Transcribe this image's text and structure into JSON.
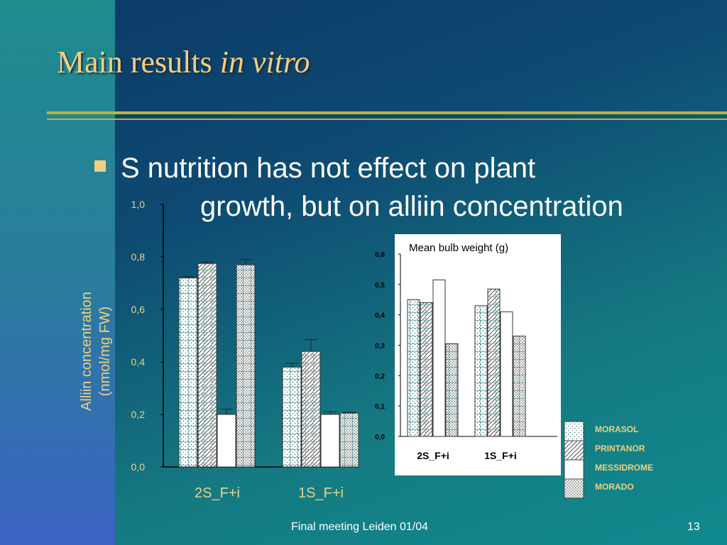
{
  "slide": {
    "title_main": "Main results",
    "title_italic": "in vitro",
    "bullet_line1": "S nutrition has not effect on plant",
    "bullet_line2": "growth, but on alliin concentration",
    "footer_text": "Final meeting Leiden 01/04",
    "page_number": "13"
  },
  "colors": {
    "title": "#f0d080",
    "axis_text_chart1": "#f0d080",
    "rule": "#b9b53a"
  },
  "chart_data": [
    {
      "type": "bar",
      "ylabel": "Alliin concentration\n(nmol/mg FW)",
      "ylabel_line1": "Alliin concentration",
      "ylabel_line2": "(nmol/mg FW)",
      "categories": [
        "2S_F+i",
        "1S_F+i"
      ],
      "ylim": [
        0,
        1.0
      ],
      "yticks": [
        "0,0",
        "0,2",
        "0,4",
        "0,6",
        "0,8",
        "1,0"
      ],
      "series": [
        {
          "name": "MORASOL",
          "values": [
            0.72,
            0.38
          ],
          "errors": [
            0.005,
            0.015
          ]
        },
        {
          "name": "PRINTANOR",
          "values": [
            0.775,
            0.44
          ],
          "errors": [
            0.005,
            0.045
          ]
        },
        {
          "name": "MESSIDROME",
          "values": [
            0.2,
            0.2
          ],
          "errors": [
            0.02,
            0.01
          ]
        },
        {
          "name": "MORADO",
          "values": [
            0.77,
            0.205
          ],
          "errors": [
            0.02,
            0.003
          ]
        }
      ]
    },
    {
      "type": "bar",
      "title": "Mean bulb weight (g)",
      "categories": [
        "2S_F+i",
        "1S_F+i"
      ],
      "ylim": [
        0,
        0.6
      ],
      "yticks": [
        "0,0",
        "0,1",
        "0,2",
        "0,3",
        "0,4",
        "0,5",
        "0,6"
      ],
      "series": [
        {
          "name": "MORASOL",
          "values": [
            0.45,
            0.43
          ]
        },
        {
          "name": "PRINTANOR",
          "values": [
            0.44,
            0.485
          ]
        },
        {
          "name": "MESSIDROME",
          "values": [
            0.515,
            0.41
          ]
        },
        {
          "name": "MORADO",
          "values": [
            0.305,
            0.33
          ]
        }
      ]
    }
  ],
  "legend": {
    "items": [
      "MORASOL",
      "PRINTANOR",
      "MESSIDROME",
      "MORADO"
    ]
  }
}
